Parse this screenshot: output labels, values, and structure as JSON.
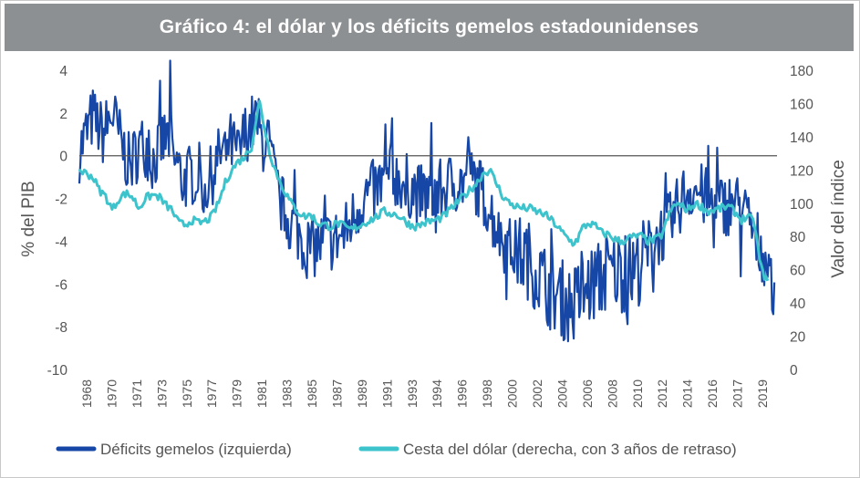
{
  "colors": {
    "deficit": "#1747a6",
    "dollar": "#3cc3cc",
    "zero_line": "#555555",
    "title_bg": "#8c9093"
  },
  "chart_data": {
    "type": "line",
    "title": "Gráfico 4: el dólar y los déficits gemelos estadounidenses",
    "ylabel_left": "% del PIB",
    "ylabel_right": "Valor del índice",
    "ylim_left": [
      -10,
      4
    ],
    "ylim_right": [
      0,
      180
    ],
    "yticks_left": [
      "4",
      "2",
      "0",
      "-2",
      "-4",
      "-6",
      "-8",
      "-10"
    ],
    "yticks_right": [
      "180",
      "160",
      "140",
      "120",
      "100",
      "80",
      "60",
      "40",
      "20",
      "0"
    ],
    "xtick_labels": [
      "1968",
      "1970",
      "1971",
      "1973",
      "1975",
      "1977",
      "1979",
      "1981",
      "1983",
      "1985",
      "1987",
      "1989",
      "1991",
      "1993",
      "1994",
      "1996",
      "1998",
      "2000",
      "2002",
      "2004",
      "2006",
      "2008",
      "2010",
      "2012",
      "2014",
      "2016",
      "2017",
      "2019"
    ],
    "xlim": [
      1968,
      2020.7
    ],
    "legend": [
      {
        "name": "Déficits gemelos (izquierda)"
      },
      {
        "name": "Cesta del dólar (derecha, con 3 años de retraso)"
      }
    ],
    "series": [
      {
        "name": "Déficits gemelos (izquierda)",
        "axis": "left",
        "x": [
          1968.0,
          1969.0,
          1969.8,
          1970.5,
          1971.2,
          1971.8,
          1972.5,
          1973.0,
          1973.6,
          1974.2,
          1974.8,
          1975.3,
          1975.8,
          1976.4,
          1977.0,
          1977.6,
          1978.2,
          1978.8,
          1979.4,
          1980.0,
          1980.6,
          1981.0,
          1981.4,
          1981.8,
          1982.2,
          1982.6,
          1983.0,
          1983.5,
          1984.0,
          1984.5,
          1985.0,
          1985.6,
          1986.2,
          1986.8,
          1987.4,
          1988.0,
          1988.6,
          1989.2,
          1989.8,
          1990.4,
          1991.0,
          1991.5,
          1992.0,
          1992.6,
          1993.2,
          1993.8,
          1994.4,
          1995.0,
          1995.6,
          1996.2,
          1996.8,
          1997.3,
          1997.8,
          1998.3,
          1998.8,
          1999.3,
          1999.8,
          2000.3,
          2000.8,
          2001.3,
          2001.8,
          2002.3,
          2002.8,
          2003.3,
          2003.8,
          2004.3,
          2004.8,
          2005.3,
          2005.8,
          2006.3,
          2006.8,
          2007.3,
          2007.8,
          2008.3,
          2008.8,
          2009.3,
          2009.8,
          2010.3,
          2010.8,
          2011.3,
          2011.8,
          2012.3,
          2012.8,
          2013.3,
          2013.8,
          2014.3,
          2014.8,
          2015.3,
          2015.8,
          2016.3,
          2016.8,
          2017.3,
          2017.8,
          2018.3,
          2018.8,
          2019.2,
          2019.6,
          2019.9,
          2020.1,
          2020.3,
          2020.5
        ],
        "values": [
          0.2,
          1.8,
          1.0,
          2.0,
          0.5,
          -0.5,
          0.4,
          0.5,
          -0.3,
          0.6,
          0.9,
          -0.2,
          -1.2,
          -0.9,
          -0.8,
          -1.5,
          -0.6,
          0.3,
          0.6,
          0.0,
          1.2,
          1.4,
          1.7,
          0.6,
          0.8,
          -0.6,
          -1.8,
          -2.6,
          -3.2,
          -3.5,
          -4.2,
          -4.3,
          -4.1,
          -4.0,
          -3.9,
          -3.7,
          -3.0,
          -2.2,
          -1.8,
          -1.6,
          -1.2,
          -0.8,
          -1.0,
          -1.3,
          -1.6,
          -1.9,
          -1.8,
          -1.7,
          -1.6,
          -1.2,
          -1.3,
          -1.0,
          -1.1,
          -1.6,
          -2.2,
          -3.0,
          -3.7,
          -4.2,
          -4.4,
          -4.6,
          -4.8,
          -5.2,
          -5.6,
          -6.1,
          -6.4,
          -6.6,
          -6.9,
          -7.0,
          -6.6,
          -6.3,
          -6.0,
          -5.8,
          -5.6,
          -5.5,
          -5.4,
          -5.5,
          -5.3,
          -5.1,
          -4.6,
          -4.1,
          -3.7,
          -3.4,
          -3.0,
          -2.3,
          -1.7,
          -1.5,
          -1.7,
          -2.0,
          -2.3,
          -2.4,
          -2.3,
          -2.2,
          -2.3,
          -2.8,
          -3.4,
          -4.0,
          -4.5,
          -4.9,
          -5.3,
          -6.4,
          -5.8
        ]
      },
      {
        "name": "Cesta del dólar (derecha, con 3 años de retraso)",
        "axis": "right",
        "x": [
          1968.0,
          1968.5,
          1969.0,
          1969.5,
          1970.0,
          1970.5,
          1971.0,
          1971.5,
          1972.0,
          1972.5,
          1973.0,
          1973.5,
          1974.0,
          1974.5,
          1975.0,
          1975.5,
          1976.0,
          1976.5,
          1977.0,
          1977.5,
          1978.0,
          1978.5,
          1979.0,
          1979.5,
          1980.0,
          1980.5,
          1981.0,
          1981.3,
          1981.6,
          1982.0,
          1982.4,
          1982.8,
          1983.2,
          1983.6,
          1984.0,
          1984.5,
          1985.0,
          1985.5,
          1986.0,
          1986.5,
          1987.0,
          1987.5,
          1988.0,
          1988.5,
          1989.0,
          1989.5,
          1990.0,
          1990.5,
          1991.0,
          1991.5,
          1992.0,
          1992.5,
          1993.0,
          1993.5,
          1994.0,
          1994.5,
          1995.0,
          1995.5,
          1996.0,
          1996.5,
          1997.0,
          1997.5,
          1998.0,
          1998.5,
          1999.0,
          1999.5,
          2000.0,
          2000.5,
          2001.0,
          2001.5,
          2002.0,
          2002.5,
          2003.0,
          2003.5,
          2004.0,
          2004.5,
          2005.0,
          2005.3,
          2005.6,
          2006.0,
          2006.5,
          2007.0,
          2007.5,
          2008.0,
          2008.5,
          2009.0,
          2009.5,
          2010.0,
          2010.5,
          2011.0,
          2011.5,
          2012.0,
          2012.5,
          2013.0,
          2013.5,
          2014.0,
          2014.5,
          2015.0,
          2015.5,
          2016.0,
          2016.5,
          2017.0,
          2017.5,
          2018.0,
          2018.5,
          2019.0,
          2019.3,
          2019.6,
          2019.8,
          2020.0
        ],
        "values": [
          120,
          118,
          116,
          108,
          104,
          96,
          103,
          106,
          104,
          97,
          103,
          105,
          104,
          99,
          96,
          88,
          87,
          90,
          88,
          89,
          92,
          100,
          112,
          120,
          125,
          128,
          134,
          148,
          161,
          145,
          130,
          120,
          112,
          106,
          100,
          95,
          92,
          93,
          88,
          87,
          86,
          88,
          86,
          84,
          86,
          88,
          90,
          92,
          95,
          94,
          93,
          90,
          87,
          86,
          88,
          89,
          90,
          92,
          96,
          100,
          104,
          108,
          112,
          118,
          120,
          112,
          104,
          100,
          98,
          97,
          97,
          95,
          94,
          91,
          87,
          82,
          78,
          76,
          78,
          85,
          88,
          86,
          82,
          81,
          78,
          77,
          79,
          80,
          80,
          77,
          78,
          81,
          92,
          100,
          98,
          96,
          100,
          98,
          95,
          96,
          97,
          98,
          95,
          90,
          92,
          88,
          70,
          58,
          56,
          52
        ]
      }
    ]
  }
}
